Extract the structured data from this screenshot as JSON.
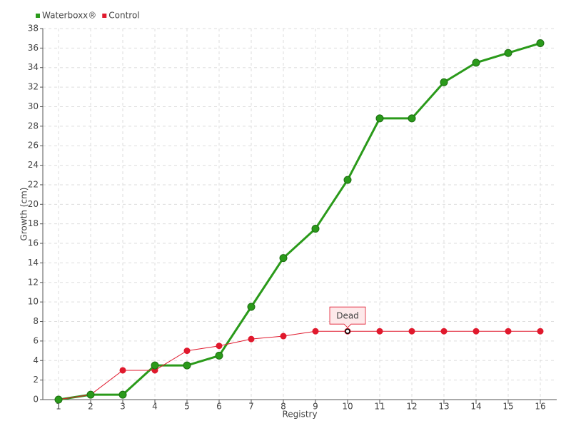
{
  "chart_data": {
    "type": "line",
    "categories": [
      1,
      2,
      3,
      4,
      5,
      6,
      7,
      8,
      9,
      10,
      11,
      12,
      13,
      14,
      15,
      16
    ],
    "series": [
      {
        "name": "Waterboxx®",
        "color": "#2a9a1a",
        "values": [
          0,
          0.5,
          0.5,
          3.5,
          3.5,
          4.5,
          9.5,
          14.5,
          17.5,
          22.5,
          28.8,
          28.8,
          32.5,
          34.5,
          35.5,
          36.5
        ]
      },
      {
        "name": "Control",
        "color": "#e0192d",
        "values": [
          0,
          0.5,
          3,
          3,
          5,
          5.5,
          6.2,
          6.5,
          7,
          7,
          7,
          7,
          7,
          7,
          7,
          7
        ]
      }
    ],
    "x_label": "Registry",
    "y_label": "Growth (cm)",
    "ylim": [
      0,
      38
    ],
    "yticks": [
      0,
      2,
      4,
      6,
      8,
      10,
      12,
      14,
      16,
      18,
      20,
      22,
      24,
      26,
      28,
      30,
      32,
      34,
      36,
      38
    ],
    "grid": true,
    "legend": "top-left",
    "annotations": [
      {
        "text": "Dead",
        "series": "Control",
        "x": 10
      }
    ]
  }
}
